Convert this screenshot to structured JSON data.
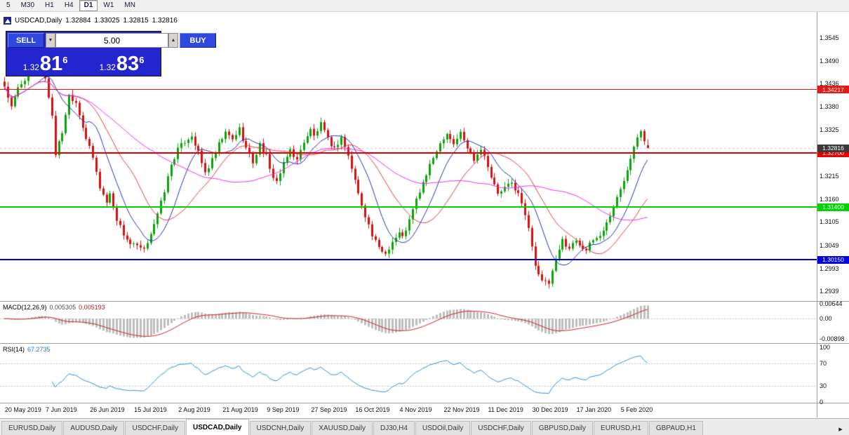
{
  "toolbar": {
    "timeframes": [
      "5",
      "M30",
      "H1",
      "H4",
      "D1",
      "W1",
      "MN"
    ],
    "active": "D1"
  },
  "chart_header": {
    "symbol": "USDCAD,Daily",
    "open": "1.32884",
    "high": "1.33025",
    "low": "1.32815",
    "close": "1.32816"
  },
  "trade_panel": {
    "sell_label": "SELL",
    "buy_label": "BUY",
    "volume": "5.00",
    "volume_down_icon": "▼",
    "volume_up_icon": "▲",
    "bid": {
      "prefix": "1.32",
      "pips": "81",
      "point": "6"
    },
    "ask": {
      "prefix": "1.32",
      "pips": "83",
      "point": "6"
    }
  },
  "price_scale": [
    "1.3545",
    "1.3490",
    "1.3436",
    "1.3380",
    "1.3325",
    "1.3270",
    "1.3215",
    "1.3160",
    "1.3105",
    "1.3049",
    "1.2993",
    "1.2939"
  ],
  "hlines": [
    {
      "price": 1.34217,
      "label": "1.34217",
      "color": "#e81717",
      "thickness": 1
    },
    {
      "price": 1.327,
      "label": "1.32700",
      "color": "#e80000",
      "thickness": 2
    },
    {
      "price": 1.314,
      "label": "1.31400",
      "color": "#00d400",
      "thickness": 2
    },
    {
      "price": 1.3015,
      "label": "1.30150",
      "color": "#0000e0",
      "thickness": 2
    }
  ],
  "bid_marker": {
    "price": 1.32816,
    "label": "1.32816",
    "color": "#3a3a3a"
  },
  "macd_panel": {
    "title": "MACD(12,26,9)",
    "main_value": "0.005305",
    "signal_value": "0.005193",
    "axis_labels": [
      "0.00644",
      "0.00",
      "-0.00898"
    ],
    "axis_values": [
      0.00644,
      0,
      -0.00898
    ]
  },
  "rsi_panel": {
    "title": "RSI(14)",
    "value": "67.2735",
    "axis_labels": [
      "100",
      "70",
      "30",
      "0"
    ],
    "axis_values": [
      100,
      70,
      30,
      0
    ],
    "levels": [
      70,
      30
    ]
  },
  "date_axis": [
    {
      "label": "20 May 2019",
      "bar": 1
    },
    {
      "label": "7 Jun 2019",
      "bar": 13
    },
    {
      "label": "26 Jun 2019",
      "bar": 26
    },
    {
      "label": "15 Jul 2019",
      "bar": 39
    },
    {
      "label": "2 Aug 2019",
      "bar": 52
    },
    {
      "label": "21 Aug 2019",
      "bar": 65
    },
    {
      "label": "9 Sep 2019",
      "bar": 78
    },
    {
      "label": "27 Sep 2019",
      "bar": 91
    },
    {
      "label": "16 Oct 2019",
      "bar": 104
    },
    {
      "label": "4 Nov 2019",
      "bar": 117
    },
    {
      "label": "22 Nov 2019",
      "bar": 130
    },
    {
      "label": "11 Dec 2019",
      "bar": 143
    },
    {
      "label": "30 Dec 2019",
      "bar": 156
    },
    {
      "label": "17 Jan 2020",
      "bar": 169
    },
    {
      "label": "5 Feb 2020",
      "bar": 182
    }
  ],
  "tabs": {
    "items": [
      "EURUSD,Daily",
      "AUDUSD,Daily",
      "USDCHF,Daily",
      "USDCAD,Daily",
      "USDCNH,Daily",
      "XAUUSD,Daily",
      "DJ30,H4",
      "USDOil,Daily",
      "USDCHF,Daily",
      "GBPUSD,Daily",
      "EURUSD,H1",
      "GBPAUD,H1"
    ],
    "active_index": 3,
    "scroll_right_icon": "▸"
  },
  "chart_data": {
    "type": "candlestick",
    "symbol": "USDCAD",
    "timeframe": "Daily",
    "bars": 190,
    "last_ohlc": [
      1.32884,
      1.33025,
      1.32815,
      1.32816
    ],
    "visible_price_range": {
      "top": 1.3607,
      "bottom": 1.2916
    },
    "up_color": "#0ba30b",
    "down_color": "#d61010",
    "price_waypoints": [
      [
        0,
        1.343
      ],
      [
        2,
        1.3378
      ],
      [
        4,
        1.3425
      ],
      [
        7,
        1.3458
      ],
      [
        10,
        1.3487
      ],
      [
        12,
        1.3448
      ],
      [
        14,
        1.336
      ],
      [
        15,
        1.3268
      ],
      [
        17,
        1.332
      ],
      [
        19,
        1.3408
      ],
      [
        21,
        1.3392
      ],
      [
        24,
        1.3305
      ],
      [
        26,
        1.3258
      ],
      [
        28,
        1.3188
      ],
      [
        30,
        1.3152
      ],
      [
        31,
        1.3172
      ],
      [
        33,
        1.3112
      ],
      [
        35,
        1.3076
      ],
      [
        37,
        1.3052
      ],
      [
        39,
        1.3046
      ],
      [
        41,
        1.3036
      ],
      [
        43,
        1.308
      ],
      [
        45,
        1.3122
      ],
      [
        47,
        1.318
      ],
      [
        49,
        1.3242
      ],
      [
        51,
        1.3278
      ],
      [
        53,
        1.3298
      ],
      [
        55,
        1.3312
      ],
      [
        57,
        1.327
      ],
      [
        59,
        1.3222
      ],
      [
        61,
        1.3252
      ],
      [
        63,
        1.329
      ],
      [
        65,
        1.3318
      ],
      [
        67,
        1.3302
      ],
      [
        69,
        1.3328
      ],
      [
        71,
        1.3282
      ],
      [
        73,
        1.3248
      ],
      [
        75,
        1.329
      ],
      [
        77,
        1.3262
      ],
      [
        78,
        1.3228
      ],
      [
        80,
        1.3202
      ],
      [
        82,
        1.3242
      ],
      [
        84,
        1.3278
      ],
      [
        86,
        1.3252
      ],
      [
        88,
        1.3298
      ],
      [
        90,
        1.3325
      ],
      [
        91,
        1.331
      ],
      [
        93,
        1.3338
      ],
      [
        95,
        1.3302
      ],
      [
        97,
        1.328
      ],
      [
        99,
        1.3308
      ],
      [
        101,
        1.3262
      ],
      [
        103,
        1.3205
      ],
      [
        104,
        1.3172
      ],
      [
        106,
        1.3122
      ],
      [
        108,
        1.3072
      ],
      [
        110,
        1.3042
      ],
      [
        112,
        1.303
      ],
      [
        114,
        1.3058
      ],
      [
        116,
        1.3078
      ],
      [
        117,
        1.3068
      ],
      [
        119,
        1.3108
      ],
      [
        121,
        1.3158
      ],
      [
        123,
        1.3198
      ],
      [
        125,
        1.3238
      ],
      [
        127,
        1.3278
      ],
      [
        129,
        1.3308
      ],
      [
        130,
        1.3318
      ],
      [
        132,
        1.3292
      ],
      [
        134,
        1.3318
      ],
      [
        136,
        1.3282
      ],
      [
        138,
        1.3256
      ],
      [
        140,
        1.3282
      ],
      [
        142,
        1.3242
      ],
      [
        143,
        1.3212
      ],
      [
        145,
        1.3172
      ],
      [
        147,
        1.3186
      ],
      [
        149,
        1.3198
      ],
      [
        151,
        1.3172
      ],
      [
        153,
        1.3122
      ],
      [
        155,
        1.3052
      ],
      [
        156,
        1.3002
      ],
      [
        158,
        1.2962
      ],
      [
        160,
        1.2958
      ],
      [
        162,
        1.3012
      ],
      [
        164,
        1.3062
      ],
      [
        166,
        1.3042
      ],
      [
        168,
        1.3062
      ],
      [
        169,
        1.3052
      ],
      [
        171,
        1.3038
      ],
      [
        173,
        1.3062
      ],
      [
        175,
        1.3072
      ],
      [
        177,
        1.3102
      ],
      [
        179,
        1.3142
      ],
      [
        181,
        1.3182
      ],
      [
        182,
        1.3205
      ],
      [
        184,
        1.3262
      ],
      [
        186,
        1.3312
      ],
      [
        187,
        1.3328
      ],
      [
        188,
        1.3302
      ],
      [
        189,
        1.32816
      ]
    ],
    "moving_averages": [
      {
        "period": 10,
        "color": "#2330bb"
      },
      {
        "period": 21,
        "color": "#e23b3b"
      },
      {
        "period": 45,
        "color": "#f02bf0"
      }
    ],
    "macd": {
      "fast": 12,
      "slow": 26,
      "signal": 9,
      "hist_color": "#bdbdbd",
      "signal_color": "#cc2222",
      "range": [
        -0.00898,
        0.00644
      ]
    },
    "rsi": {
      "period": 14,
      "color": "#2f8fd4",
      "levels": [
        30,
        70
      ],
      "range": [
        0,
        100
      ]
    }
  }
}
